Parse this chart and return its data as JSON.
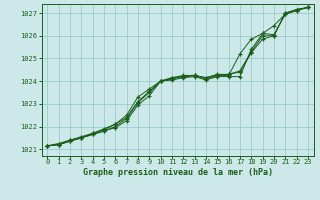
{
  "title": "Graphe pression niveau de la mer (hPa)",
  "bg_color": "#cce8e8",
  "grid_color": "#99cccc",
  "line_color": "#1a5e1a",
  "xlim": [
    -0.5,
    23.5
  ],
  "ylim": [
    1020.7,
    1027.4
  ],
  "yticks": [
    1021,
    1022,
    1023,
    1024,
    1025,
    1026,
    1027
  ],
  "xticks": [
    0,
    1,
    2,
    3,
    4,
    5,
    6,
    7,
    8,
    9,
    10,
    11,
    12,
    13,
    14,
    15,
    16,
    17,
    18,
    19,
    20,
    21,
    22,
    23
  ],
  "s1_x": [
    0,
    1,
    2,
    3,
    4,
    5,
    6,
    7,
    8,
    9,
    10,
    11,
    12,
    13,
    14,
    15,
    16,
    17,
    18,
    19,
    20,
    21,
    22,
    23
  ],
  "s1_y": [
    1021.15,
    1021.2,
    1021.35,
    1021.5,
    1021.65,
    1021.8,
    1021.95,
    1022.25,
    1022.95,
    1023.35,
    1024.0,
    1024.05,
    1024.15,
    1024.2,
    1024.05,
    1024.2,
    1024.2,
    1024.2,
    1025.4,
    1026.1,
    1026.05,
    1026.95,
    1027.15,
    1027.25
  ],
  "s2_x": [
    0,
    1,
    2,
    3,
    4,
    5,
    6,
    7,
    8,
    9,
    10,
    11,
    12,
    13,
    14,
    15,
    16,
    17,
    18,
    19,
    20,
    21,
    22,
    23
  ],
  "s2_y": [
    1021.15,
    1021.2,
    1021.35,
    1021.5,
    1021.65,
    1021.8,
    1022.0,
    1022.35,
    1023.05,
    1023.5,
    1024.0,
    1024.1,
    1024.2,
    1024.25,
    1024.1,
    1024.25,
    1024.25,
    1025.2,
    1025.85,
    1026.1,
    1026.45,
    1026.95,
    1027.1,
    1027.25
  ],
  "s3_x": [
    0,
    1,
    2,
    3,
    4,
    5,
    6,
    7,
    8,
    9,
    10,
    11,
    12,
    13,
    14,
    15,
    16,
    17,
    18,
    19,
    20,
    21,
    22,
    23
  ],
  "s3_y": [
    1021.15,
    1021.25,
    1021.4,
    1021.55,
    1021.7,
    1021.9,
    1022.1,
    1022.4,
    1023.1,
    1023.55,
    1024.0,
    1024.15,
    1024.2,
    1024.25,
    1024.15,
    1024.25,
    1024.3,
    1024.45,
    1025.3,
    1026.0,
    1026.0,
    1027.0,
    1027.15,
    1027.25
  ],
  "s4_x": [
    0,
    1,
    2,
    3,
    4,
    5,
    6,
    7,
    8,
    9,
    10,
    11,
    12,
    13,
    14,
    15,
    16,
    17,
    18,
    19,
    20,
    21,
    22,
    23
  ],
  "s4_y": [
    1021.15,
    1021.2,
    1021.4,
    1021.5,
    1021.7,
    1021.85,
    1022.1,
    1022.5,
    1023.3,
    1023.65,
    1024.0,
    1024.15,
    1024.25,
    1024.25,
    1024.15,
    1024.3,
    1024.3,
    1024.4,
    1025.25,
    1025.85,
    1026.0,
    1027.0,
    1027.15,
    1027.25
  ]
}
